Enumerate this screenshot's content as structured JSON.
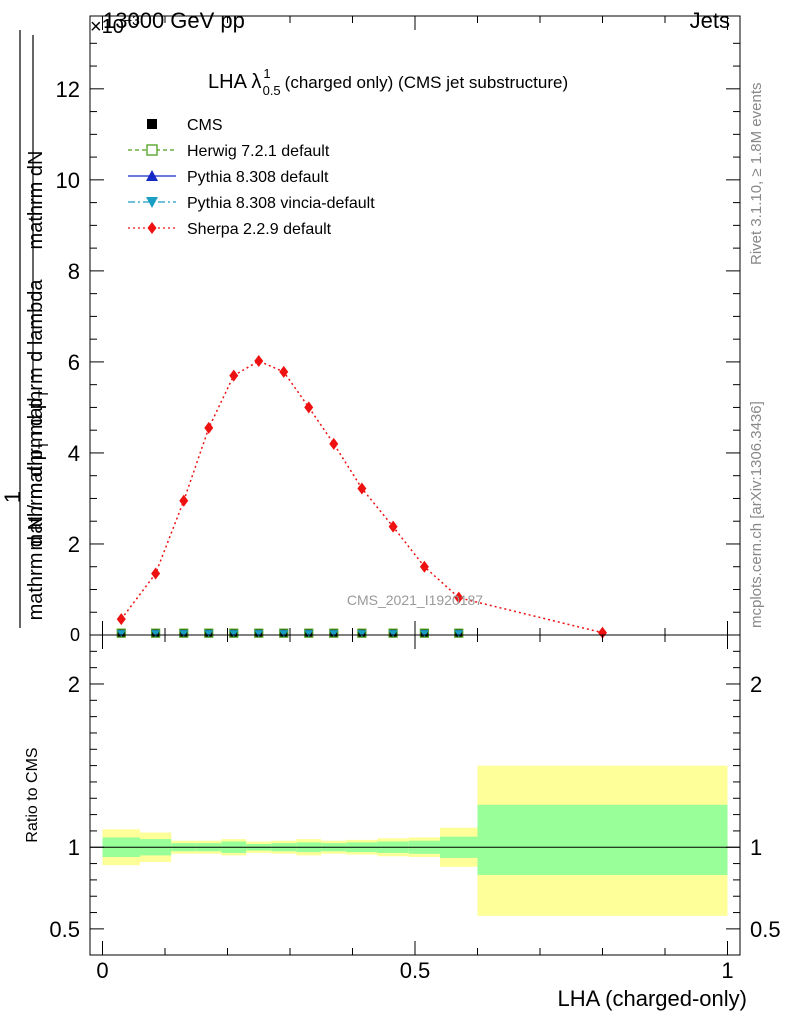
{
  "header": {
    "left": "13000 GeV pp",
    "right": "Jets",
    "exponent_label": "×10^{-3}"
  },
  "side_labels": {
    "rivet": "Rivet 3.1.10, ≥ 1.8M events",
    "mcplots": "mcplots.cern.ch [arXiv:1306.3436]"
  },
  "watermark": "CMS_2021_I1920187",
  "chart_data": [
    {
      "type": "line",
      "title": "LHA λ^1_0.5 (charged only) (CMS jet substructure)",
      "ylabel_numerator": "mathrm dN",
      "ylabel_fraction_num": "1",
      "ylabel_denominator_main": "mathrm d N / mathrm d p_T mathrm d lambda",
      "ylabel_denominator_top": "mathrm d N",
      "ylabel_denominator_mid": "mathrm d p_T mathrm d lambda",
      "xlim": [
        -0.02,
        1.02
      ],
      "ylim": [
        0,
        13.6
      ],
      "y_scale_factor": "1e-3",
      "yticks": [
        0,
        2,
        4,
        6,
        8,
        10,
        12
      ],
      "ytick_labels": [
        "0",
        "2",
        "4",
        "6",
        "8",
        "10",
        "12"
      ],
      "legend_position": "top-left",
      "legend": [
        {
          "name": "CMS",
          "color": "#000000",
          "marker": "square-filled",
          "style": "none"
        },
        {
          "name": "Herwig 7.2.1 default",
          "color": "#4d9e1c",
          "marker": "square-open",
          "style": "dashed"
        },
        {
          "name": "Pythia 8.308 default",
          "color": "#1529c7",
          "marker": "triangle-up",
          "style": "solid"
        },
        {
          "name": "Pythia 8.308 vincia-default",
          "color": "#1a9ec4",
          "marker": "triangle-down",
          "style": "dashdot"
        },
        {
          "name": "Sherpa 2.2.9 default",
          "color": "#ee1111",
          "marker": "diamond",
          "style": "dotted"
        }
      ],
      "sherpa_x": [
        0.03,
        0.085,
        0.13,
        0.17,
        0.21,
        0.25,
        0.29,
        0.33,
        0.37,
        0.415,
        0.465,
        0.515,
        0.57,
        0.8
      ],
      "sherpa_y": [
        0.35,
        1.35,
        2.95,
        4.55,
        5.7,
        6.02,
        5.78,
        5.0,
        4.2,
        3.22,
        2.38,
        1.5,
        0.82,
        0.05
      ],
      "flat_x": [
        0.03,
        0.085,
        0.13,
        0.17,
        0.21,
        0.25,
        0.29,
        0.33,
        0.37,
        0.415,
        0.465,
        0.515,
        0.57
      ],
      "flat_y": [
        0.04,
        0.04,
        0.04,
        0.04,
        0.04,
        0.04,
        0.04,
        0.04,
        0.04,
        0.04,
        0.04,
        0.04,
        0.04
      ]
    },
    {
      "type": "area",
      "ylabel": "Ratio to CMS",
      "xlabel": "LHA (charged-only)",
      "xlim": [
        -0.02,
        1.02
      ],
      "ylim": [
        0.34,
        2.3
      ],
      "xticks": [
        0,
        0.5,
        1
      ],
      "xtick_labels": [
        "0",
        "0.5",
        "1"
      ],
      "yticks": [
        0.5,
        1,
        2
      ],
      "ytick_labels": [
        "0.5",
        "1",
        "2"
      ],
      "reference_line": 1,
      "band_colors": {
        "inner": "#99ff99",
        "outer": "#ffff99"
      },
      "bins": [
        {
          "x0": 0.0,
          "x1": 0.06,
          "inner": [
            0.94,
            1.06
          ],
          "outer": [
            0.89,
            1.11
          ]
        },
        {
          "x0": 0.06,
          "x1": 0.11,
          "inner": [
            0.95,
            1.05
          ],
          "outer": [
            0.91,
            1.09
          ]
        },
        {
          "x0": 0.11,
          "x1": 0.15,
          "inner": [
            0.975,
            1.025
          ],
          "outer": [
            0.96,
            1.04
          ]
        },
        {
          "x0": 0.15,
          "x1": 0.19,
          "inner": [
            0.975,
            1.025
          ],
          "outer": [
            0.96,
            1.04
          ]
        },
        {
          "x0": 0.19,
          "x1": 0.23,
          "inner": [
            0.965,
            1.035
          ],
          "outer": [
            0.95,
            1.05
          ]
        },
        {
          "x0": 0.23,
          "x1": 0.27,
          "inner": [
            0.98,
            1.02
          ],
          "outer": [
            0.965,
            1.035
          ]
        },
        {
          "x0": 0.27,
          "x1": 0.31,
          "inner": [
            0.975,
            1.025
          ],
          "outer": [
            0.96,
            1.04
          ]
        },
        {
          "x0": 0.31,
          "x1": 0.35,
          "inner": [
            0.97,
            1.03
          ],
          "outer": [
            0.95,
            1.05
          ]
        },
        {
          "x0": 0.35,
          "x1": 0.39,
          "inner": [
            0.975,
            1.025
          ],
          "outer": [
            0.96,
            1.04
          ]
        },
        {
          "x0": 0.39,
          "x1": 0.44,
          "inner": [
            0.97,
            1.03
          ],
          "outer": [
            0.955,
            1.045
          ]
        },
        {
          "x0": 0.44,
          "x1": 0.49,
          "inner": [
            0.965,
            1.035
          ],
          "outer": [
            0.945,
            1.055
          ]
        },
        {
          "x0": 0.49,
          "x1": 0.54,
          "inner": [
            0.96,
            1.04
          ],
          "outer": [
            0.94,
            1.06
          ]
        },
        {
          "x0": 0.54,
          "x1": 0.6,
          "inner": [
            0.935,
            1.065
          ],
          "outer": [
            0.88,
            1.12
          ]
        },
        {
          "x0": 0.6,
          "x1": 1.0,
          "inner": [
            0.83,
            1.26
          ],
          "outer": [
            0.58,
            1.5
          ]
        }
      ]
    }
  ]
}
